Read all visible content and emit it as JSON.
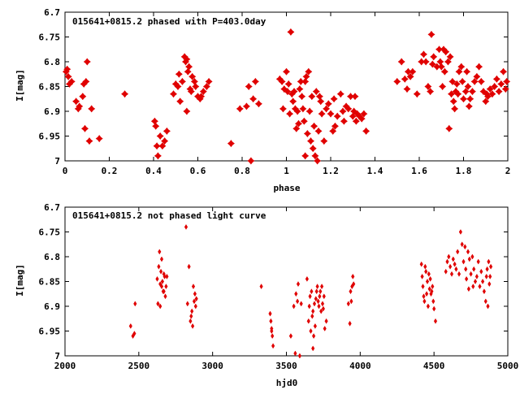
{
  "chart_data": [
    {
      "type": "scatter",
      "title": "015641+0815.2 phased with P=403.0day",
      "xlabel": "phase",
      "ylabel": "I[mag]",
      "xlim": [
        0,
        2
      ],
      "ylim": [
        7,
        6.7
      ],
      "y_inverted": true,
      "x_ticks": [
        "0",
        "0.2",
        "0.4",
        "0.6",
        "0.8",
        "1",
        "1.2",
        "1.4",
        "1.6",
        "1.8",
        "2"
      ],
      "y_ticks": [
        "6.7",
        "6.75",
        "6.8",
        "6.85",
        "6.9",
        "6.95",
        "7"
      ],
      "grid": false,
      "marker_color": "#e00000",
      "marker": "star",
      "points": [
        [
          0.005,
          6.82
        ],
        [
          0.01,
          6.815
        ],
        [
          0.015,
          6.83
        ],
        [
          0.02,
          6.845
        ],
        [
          0.03,
          6.84
        ],
        [
          0.05,
          6.88
        ],
        [
          0.06,
          6.895
        ],
        [
          0.065,
          6.89
        ],
        [
          0.08,
          6.87
        ],
        [
          0.085,
          6.845
        ],
        [
          0.09,
          6.935
        ],
        [
          0.095,
          6.84
        ],
        [
          0.1,
          6.8
        ],
        [
          0.11,
          6.96
        ],
        [
          0.12,
          6.895
        ],
        [
          0.155,
          6.955
        ],
        [
          0.27,
          6.865
        ],
        [
          0.405,
          6.92
        ],
        [
          0.41,
          6.93
        ],
        [
          0.415,
          6.97
        ],
        [
          0.42,
          6.99
        ],
        [
          0.43,
          6.95
        ],
        [
          0.44,
          6.97
        ],
        [
          0.45,
          6.96
        ],
        [
          0.46,
          6.94
        ],
        [
          0.49,
          6.865
        ],
        [
          0.5,
          6.845
        ],
        [
          0.51,
          6.85
        ],
        [
          0.515,
          6.825
        ],
        [
          0.52,
          6.88
        ],
        [
          0.53,
          6.84
        ],
        [
          0.54,
          6.79
        ],
        [
          0.545,
          6.8
        ],
        [
          0.55,
          6.795
        ],
        [
          0.555,
          6.82
        ],
        [
          0.56,
          6.81
        ],
        [
          0.565,
          6.855
        ],
        [
          0.57,
          6.86
        ],
        [
          0.575,
          6.83
        ],
        [
          0.585,
          6.84
        ],
        [
          0.59,
          6.85
        ],
        [
          0.6,
          6.87
        ],
        [
          0.61,
          6.875
        ],
        [
          0.615,
          6.87
        ],
        [
          0.625,
          6.86
        ],
        [
          0.64,
          6.85
        ],
        [
          0.65,
          6.84
        ],
        [
          0.55,
          6.9
        ],
        [
          0.75,
          6.965
        ],
        [
          0.79,
          6.895
        ],
        [
          0.82,
          6.89
        ],
        [
          0.83,
          6.85
        ],
        [
          0.84,
          7.0
        ],
        [
          0.85,
          6.875
        ],
        [
          0.86,
          6.84
        ],
        [
          0.875,
          6.885
        ],
        [
          0.97,
          6.835
        ],
        [
          0.98,
          6.84
        ],
        [
          0.985,
          6.895
        ],
        [
          0.99,
          6.855
        ],
        [
          1.0,
          6.82
        ],
        [
          1.005,
          6.86
        ],
        [
          1.01,
          6.845
        ],
        [
          1.015,
          6.905
        ],
        [
          1.02,
          6.74
        ],
        [
          1.025,
          6.865
        ],
        [
          1.03,
          6.88
        ],
        [
          1.035,
          6.86
        ],
        [
          1.04,
          6.895
        ],
        [
          1.045,
          6.935
        ],
        [
          1.05,
          6.9
        ],
        [
          1.055,
          6.925
        ],
        [
          1.06,
          6.855
        ],
        [
          1.065,
          6.84
        ],
        [
          1.07,
          6.87
        ],
        [
          1.075,
          6.895
        ],
        [
          1.08,
          6.92
        ],
        [
          1.085,
          6.84
        ],
        [
          1.09,
          6.83
        ],
        [
          1.095,
          6.945
        ],
        [
          1.1,
          6.82
        ],
        [
          1.105,
          6.9
        ],
        [
          1.11,
          6.96
        ],
        [
          1.115,
          6.87
        ],
        [
          1.12,
          6.975
        ],
        [
          1.125,
          6.93
        ],
        [
          1.13,
          6.99
        ],
        [
          1.135,
          6.86
        ],
        [
          1.14,
          7.0
        ],
        [
          1.145,
          6.94
        ],
        [
          1.15,
          6.87
        ],
        [
          1.155,
          6.88
        ],
        [
          1.16,
          6.905
        ],
        [
          1.17,
          6.96
        ],
        [
          1.18,
          6.895
        ],
        [
          1.19,
          6.885
        ],
        [
          1.2,
          6.905
        ],
        [
          1.21,
          6.94
        ],
        [
          1.215,
          6.875
        ],
        [
          1.22,
          6.93
        ],
        [
          1.23,
          6.91
        ],
        [
          1.245,
          6.865
        ],
        [
          1.255,
          6.9
        ],
        [
          1.26,
          6.92
        ],
        [
          1.27,
          6.89
        ],
        [
          1.28,
          6.895
        ],
        [
          1.29,
          6.87
        ],
        [
          1.3,
          6.91
        ],
        [
          1.305,
          6.9
        ],
        [
          1.31,
          6.87
        ],
        [
          1.315,
          6.92
        ],
        [
          1.32,
          6.905
        ],
        [
          1.33,
          6.91
        ],
        [
          1.34,
          6.915
        ],
        [
          1.35,
          6.905
        ],
        [
          1.36,
          6.94
        ],
        [
          1.085,
          6.99
        ],
        [
          1.5,
          6.84
        ],
        [
          1.52,
          6.8
        ],
        [
          1.535,
          6.835
        ],
        [
          1.545,
          6.855
        ],
        [
          1.55,
          6.82
        ],
        [
          1.56,
          6.83
        ],
        [
          1.57,
          6.82
        ],
        [
          1.59,
          6.865
        ],
        [
          1.61,
          6.8
        ],
        [
          1.62,
          6.785
        ],
        [
          1.63,
          6.8
        ],
        [
          1.64,
          6.85
        ],
        [
          1.65,
          6.86
        ],
        [
          1.655,
          6.745
        ],
        [
          1.66,
          6.805
        ],
        [
          1.665,
          6.79
        ],
        [
          1.68,
          6.81
        ],
        [
          1.69,
          6.775
        ],
        [
          1.695,
          6.8
        ],
        [
          1.7,
          6.81
        ],
        [
          1.705,
          6.85
        ],
        [
          1.71,
          6.775
        ],
        [
          1.715,
          6.82
        ],
        [
          1.72,
          6.78
        ],
        [
          1.73,
          6.8
        ],
        [
          1.74,
          6.79
        ],
        [
          1.745,
          6.865
        ],
        [
          1.75,
          6.84
        ],
        [
          1.755,
          6.88
        ],
        [
          1.76,
          6.895
        ],
        [
          1.765,
          6.86
        ],
        [
          1.77,
          6.845
        ],
        [
          1.78,
          6.82
        ],
        [
          1.79,
          6.81
        ],
        [
          1.795,
          6.84
        ],
        [
          1.8,
          6.875
        ],
        [
          1.81,
          6.86
        ],
        [
          1.815,
          6.82
        ],
        [
          1.82,
          6.85
        ],
        [
          1.825,
          6.89
        ],
        [
          1.83,
          6.875
        ],
        [
          1.84,
          6.86
        ],
        [
          1.85,
          6.84
        ],
        [
          1.86,
          6.83
        ],
        [
          1.87,
          6.81
        ],
        [
          1.88,
          6.84
        ],
        [
          1.89,
          6.86
        ],
        [
          1.9,
          6.88
        ],
        [
          1.91,
          6.87
        ],
        [
          1.92,
          6.855
        ],
        [
          1.93,
          6.865
        ],
        [
          1.94,
          6.85
        ],
        [
          1.95,
          6.835
        ],
        [
          1.96,
          6.86
        ],
        [
          1.97,
          6.845
        ],
        [
          1.98,
          6.82
        ],
        [
          1.99,
          6.855
        ],
        [
          1.995,
          6.84
        ],
        [
          1.735,
          6.935
        ],
        [
          1.775,
          6.865
        ],
        [
          1.905,
          6.865
        ]
      ]
    },
    {
      "type": "scatter",
      "title": "015641+0815.2 not phased light curve",
      "xlabel": "hjd0",
      "ylabel": "I[mag]",
      "xlim": [
        2000,
        5000
      ],
      "ylim": [
        7,
        6.7
      ],
      "y_inverted": true,
      "x_ticks": [
        "2000",
        "2500",
        "3000",
        "3500",
        "4000",
        "4500",
        "5000"
      ],
      "y_ticks": [
        "6.7",
        "6.75",
        "6.8",
        "6.85",
        "6.9",
        "6.95",
        "7"
      ],
      "grid": false,
      "marker_color": "#e00000",
      "marker": "diamond",
      "points": [
        [
          2445,
          6.94
        ],
        [
          2460,
          6.96
        ],
        [
          2470,
          6.955
        ],
        [
          2475,
          6.895
        ],
        [
          2625,
          6.845
        ],
        [
          2630,
          6.895
        ],
        [
          2635,
          6.82
        ],
        [
          2640,
          6.79
        ],
        [
          2645,
          6.855
        ],
        [
          2650,
          6.83
        ],
        [
          2655,
          6.805
        ],
        [
          2660,
          6.85
        ],
        [
          2665,
          6.87
        ],
        [
          2670,
          6.835
        ],
        [
          2675,
          6.84
        ],
        [
          2680,
          6.88
        ],
        [
          2685,
          6.86
        ],
        [
          2690,
          6.84
        ],
        [
          2645,
          6.9
        ],
        [
          2670,
          6.87
        ],
        [
          2655,
          6.86
        ],
        [
          2820,
          6.74
        ],
        [
          2830,
          6.895
        ],
        [
          2840,
          6.82
        ],
        [
          2850,
          6.93
        ],
        [
          2860,
          6.91
        ],
        [
          2870,
          6.86
        ],
        [
          2875,
          6.89
        ],
        [
          2880,
          6.875
        ],
        [
          2885,
          6.9
        ],
        [
          2890,
          6.885
        ],
        [
          2865,
          6.94
        ],
        [
          2855,
          6.92
        ],
        [
          3330,
          6.86
        ],
        [
          3390,
          6.915
        ],
        [
          3395,
          6.93
        ],
        [
          3400,
          6.945
        ],
        [
          3405,
          6.96
        ],
        [
          3410,
          6.98
        ],
        [
          3400,
          6.95
        ],
        [
          3530,
          6.96
        ],
        [
          3550,
          6.9
        ],
        [
          3560,
          6.995
        ],
        [
          3565,
          6.875
        ],
        [
          3575,
          6.89
        ],
        [
          3580,
          6.855
        ],
        [
          3590,
          7.0
        ],
        [
          3600,
          6.895
        ],
        [
          3640,
          6.845
        ],
        [
          3650,
          6.93
        ],
        [
          3655,
          6.9
        ],
        [
          3660,
          6.88
        ],
        [
          3665,
          6.95
        ],
        [
          3670,
          6.87
        ],
        [
          3675,
          6.92
        ],
        [
          3680,
          6.91
        ],
        [
          3685,
          6.96
        ],
        [
          3690,
          6.895
        ],
        [
          3695,
          6.94
        ],
        [
          3700,
          6.885
        ],
        [
          3705,
          6.87
        ],
        [
          3710,
          6.86
        ],
        [
          3715,
          6.89
        ],
        [
          3720,
          6.9
        ],
        [
          3725,
          6.88
        ],
        [
          3730,
          6.87
        ],
        [
          3735,
          6.91
        ],
        [
          3740,
          6.86
        ],
        [
          3745,
          6.895
        ],
        [
          3750,
          6.905
        ],
        [
          3755,
          6.88
        ],
        [
          3760,
          6.945
        ],
        [
          3770,
          6.93
        ],
        [
          3680,
          6.985
        ],
        [
          3920,
          6.895
        ],
        [
          3930,
          6.935
        ],
        [
          3935,
          6.87
        ],
        [
          3940,
          6.89
        ],
        [
          3945,
          6.86
        ],
        [
          3950,
          6.84
        ],
        [
          3955,
          6.855
        ],
        [
          4415,
          6.815
        ],
        [
          4420,
          6.84
        ],
        [
          4425,
          6.86
        ],
        [
          4430,
          6.88
        ],
        [
          4435,
          6.89
        ],
        [
          4440,
          6.82
        ],
        [
          4445,
          6.83
        ],
        [
          4450,
          6.875
        ],
        [
          4455,
          6.85
        ],
        [
          4460,
          6.9
        ],
        [
          4465,
          6.835
        ],
        [
          4470,
          6.865
        ],
        [
          4475,
          6.845
        ],
        [
          4480,
          6.875
        ],
        [
          4485,
          6.87
        ],
        [
          4490,
          6.86
        ],
        [
          4495,
          6.89
        ],
        [
          4500,
          6.905
        ],
        [
          4510,
          6.93
        ],
        [
          4580,
          6.83
        ],
        [
          4590,
          6.81
        ],
        [
          4600,
          6.8
        ],
        [
          4610,
          6.82
        ],
        [
          4620,
          6.835
        ],
        [
          4630,
          6.805
        ],
        [
          4640,
          6.815
        ],
        [
          4650,
          6.825
        ],
        [
          4660,
          6.79
        ],
        [
          4670,
          6.835
        ],
        [
          4680,
          6.75
        ],
        [
          4690,
          6.775
        ],
        [
          4700,
          6.81
        ],
        [
          4710,
          6.78
        ],
        [
          4715,
          6.825
        ],
        [
          4720,
          6.845
        ],
        [
          4730,
          6.79
        ],
        [
          4735,
          6.865
        ],
        [
          4740,
          6.805
        ],
        [
          4750,
          6.835
        ],
        [
          4760,
          6.8
        ],
        [
          4765,
          6.86
        ],
        [
          4770,
          6.825
        ],
        [
          4780,
          6.85
        ],
        [
          4790,
          6.84
        ],
        [
          4800,
          6.81
        ],
        [
          4810,
          6.86
        ],
        [
          4820,
          6.83
        ],
        [
          4830,
          6.85
        ],
        [
          4840,
          6.87
        ],
        [
          4850,
          6.89
        ],
        [
          4855,
          6.84
        ],
        [
          4860,
          6.825
        ],
        [
          4865,
          6.9
        ],
        [
          4870,
          6.81
        ],
        [
          4875,
          6.855
        ],
        [
          4880,
          6.84
        ],
        [
          4885,
          6.82
        ]
      ]
    }
  ]
}
